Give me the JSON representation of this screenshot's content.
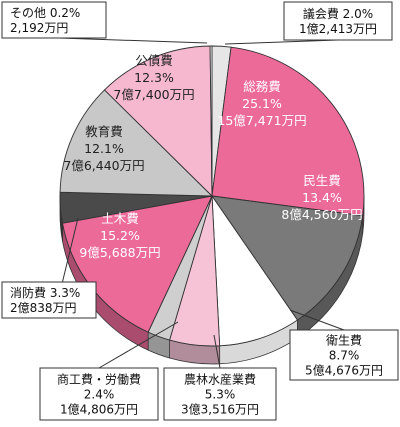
{
  "chart_data": {
    "type": "pie",
    "title": "",
    "slices": [
      {
        "label": "議会費",
        "percent": 2.0,
        "amount": "1億2,413万円",
        "color": "#e6e6e6"
      },
      {
        "label": "総務費",
        "percent": 25.1,
        "amount": "15億7,471万円",
        "color": "#ec6a98"
      },
      {
        "label": "民生費",
        "percent": 13.4,
        "amount": "8億4,560万円",
        "color": "#7a7a7a"
      },
      {
        "label": "衛生費",
        "percent": 8.7,
        "amount": "5億4,676万円",
        "color": "#ffffff"
      },
      {
        "label": "農林水産業費",
        "percent": 5.3,
        "amount": "3億3,516万円",
        "color": "#f6c3d6"
      },
      {
        "label": "商工費・労働費",
        "percent": 2.4,
        "amount": "1億4,806万円",
        "color": "#cfcfcf"
      },
      {
        "label": "土木費",
        "percent": 15.2,
        "amount": "9億5,688万円",
        "color": "#ec6a98"
      },
      {
        "label": "消防費",
        "percent": 3.3,
        "amount": "2億838万円",
        "color": "#4a4a4a"
      },
      {
        "label": "教育費",
        "percent": 12.1,
        "amount": "7億6,440万円",
        "color": "#c8c8c8"
      },
      {
        "label": "公債費",
        "percent": 12.3,
        "amount": "7億7,400万円",
        "color": "#f6b8cf"
      },
      {
        "label": "その他",
        "percent": 0.2,
        "amount": "2,192万円",
        "color": "#ffffff"
      }
    ]
  }
}
